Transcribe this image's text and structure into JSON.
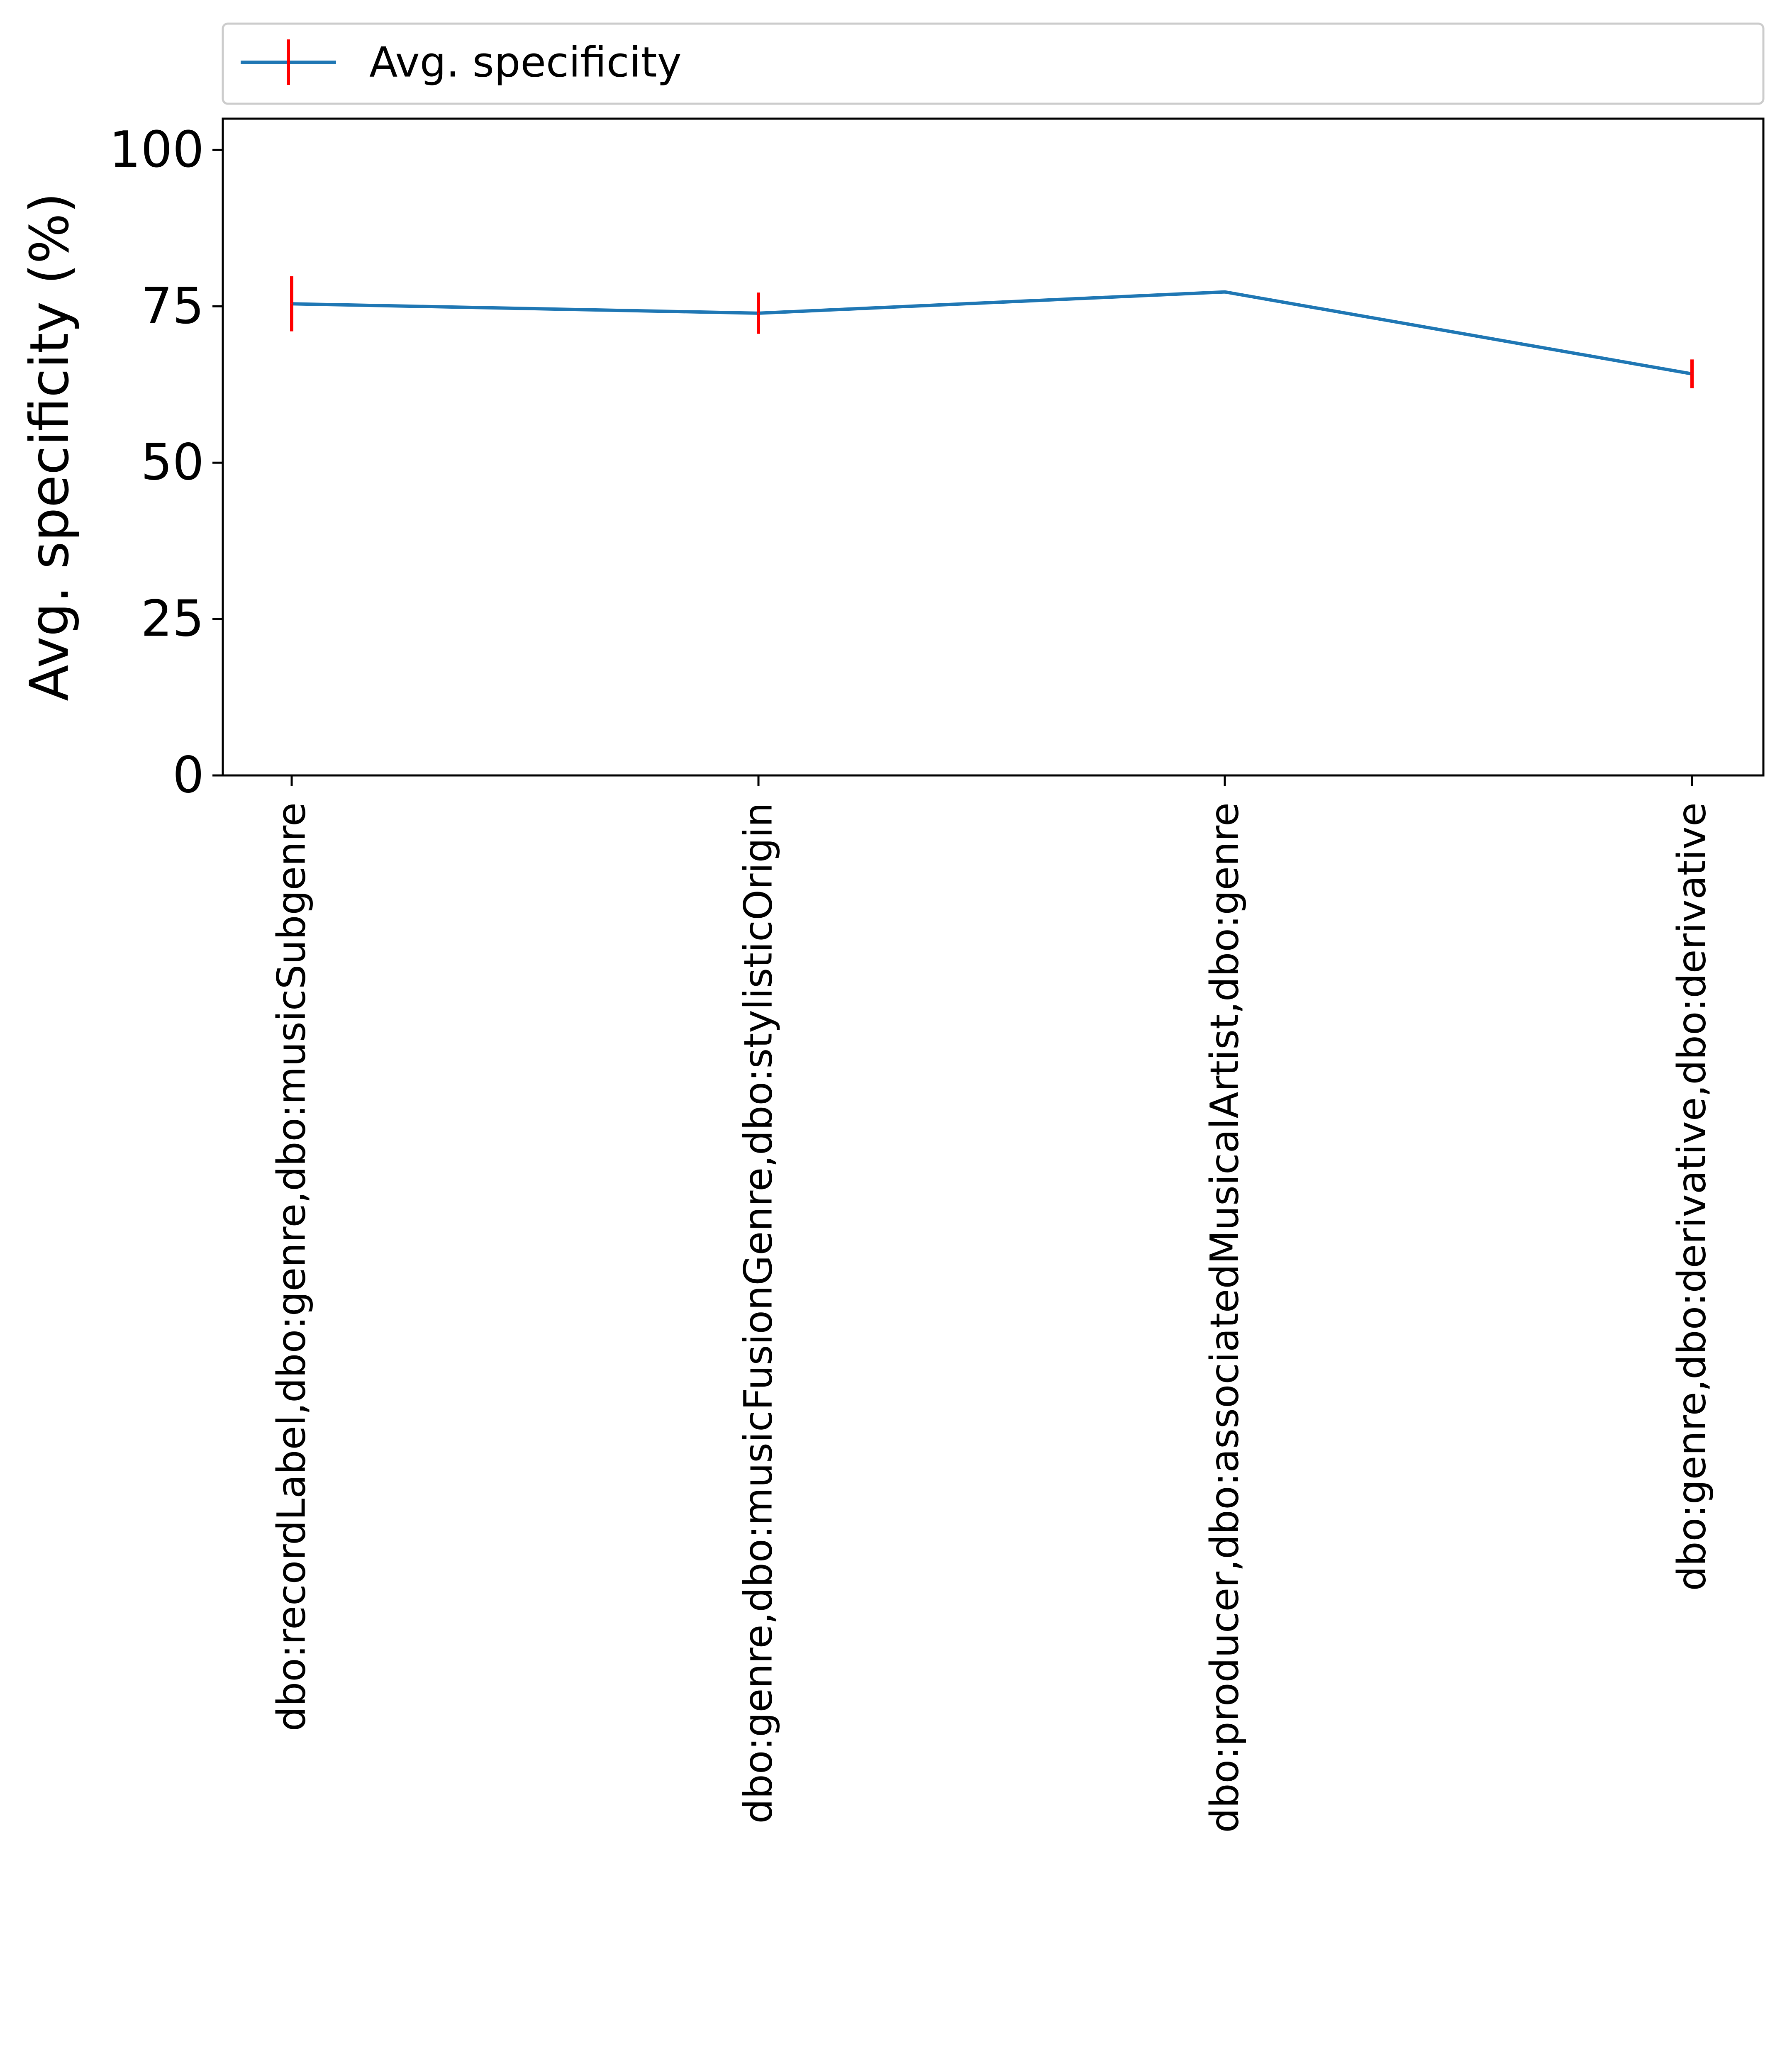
{
  "chart_data": {
    "type": "line",
    "title": "",
    "xlabel": "",
    "ylabel": "Avg. specificity (%)",
    "ylim": [
      0,
      105
    ],
    "yticks": [
      "0",
      "25",
      "50",
      "75",
      "100"
    ],
    "grid": false,
    "legend": {
      "placement": "top",
      "entries": [
        "Avg. specificity"
      ]
    },
    "categories": [
      "dbo:recordLabel,dbo:genre,dbo:musicSubgenre",
      "dbo:genre,dbo:musicFusionGenre,dbo:stylisticOrigin",
      "dbo:producer,dbo:associatedMusicalArtist,dbo:genre",
      "dbo:genre,dbo:derivative,dbo:derivative"
    ],
    "series": [
      {
        "name": "Avg. specificity",
        "values": [
          75.4,
          73.9,
          77.3,
          64.2
        ],
        "error": [
          4.4,
          3.3,
          0.0,
          2.3
        ],
        "color": "#1f77b4",
        "error_color": "#ff0000"
      }
    ]
  }
}
